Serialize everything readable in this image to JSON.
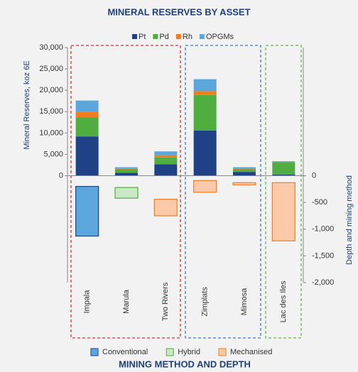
{
  "chart_data": {
    "type": "bar",
    "title": "MINERAL RESERVES BY ASSET",
    "subtitle": "MINING METHOD AND DEPTH",
    "y_label": "Mineral Reserves, koz 6E",
    "y2_label": "Depth and mining method",
    "categories": [
      "Impala",
      "Marula",
      "Two Rivers",
      "Zimplats",
      "Mimosa",
      "Lac des Iles"
    ],
    "series": [
      {
        "name": "Pt",
        "color": "#1f4287",
        "values": [
          9200,
          700,
          2700,
          10600,
          900,
          300
        ]
      },
      {
        "name": "Pd",
        "color": "#4fae3e",
        "values": [
          4500,
          800,
          1600,
          8300,
          600,
          2900
        ]
      },
      {
        "name": "Rh",
        "color": "#f47c20",
        "values": [
          1200,
          200,
          500,
          900,
          100,
          0
        ]
      },
      {
        "name": "OPGMs",
        "color": "#5ba7dd",
        "values": [
          2700,
          300,
          900,
          2800,
          400,
          200
        ]
      }
    ],
    "depth_series": [
      {
        "name": "Conventional",
        "color": "#5ba7dd",
        "stroke": "#1f4287",
        "top": [
          -200,
          null,
          null,
          null,
          null,
          null
        ],
        "bottom": [
          -1130,
          null,
          null,
          null,
          null,
          null
        ]
      },
      {
        "name": "Hybrid",
        "color": "#cbe8c4",
        "stroke": "#4fae3e",
        "top": [
          null,
          -220,
          null,
          null,
          null,
          null
        ],
        "bottom": [
          null,
          -420,
          null,
          null,
          null,
          null
        ]
      },
      {
        "name": "Mechanised",
        "color": "#fccaa9",
        "stroke": "#f47c20",
        "top": [
          null,
          null,
          -440,
          -90,
          -130,
          -130
        ],
        "bottom": [
          null,
          null,
          -750,
          -310,
          -170,
          -1220
        ]
      }
    ],
    "ylim": [
      -25000,
      30000
    ],
    "yticks": [
      0,
      {
        "value": 5000,
        "label": "5,000"
      },
      {
        "value": 10000,
        "label": "10,000"
      },
      {
        "value": 15000,
        "label": "15,000"
      },
      {
        "value": 20000,
        "label": "20,000"
      },
      {
        "value": 25000,
        "label": "25,000"
      },
      {
        "value": 30000,
        "label": "30,000"
      }
    ],
    "y2lim": [
      -2000,
      2400
    ],
    "y2ticks": [
      0,
      -500,
      {
        "value": -1000,
        "label": "-1,000"
      },
      {
        "value": -1500,
        "label": "-1,500"
      },
      {
        "value": -2000,
        "label": "-2,000"
      }
    ]
  }
}
